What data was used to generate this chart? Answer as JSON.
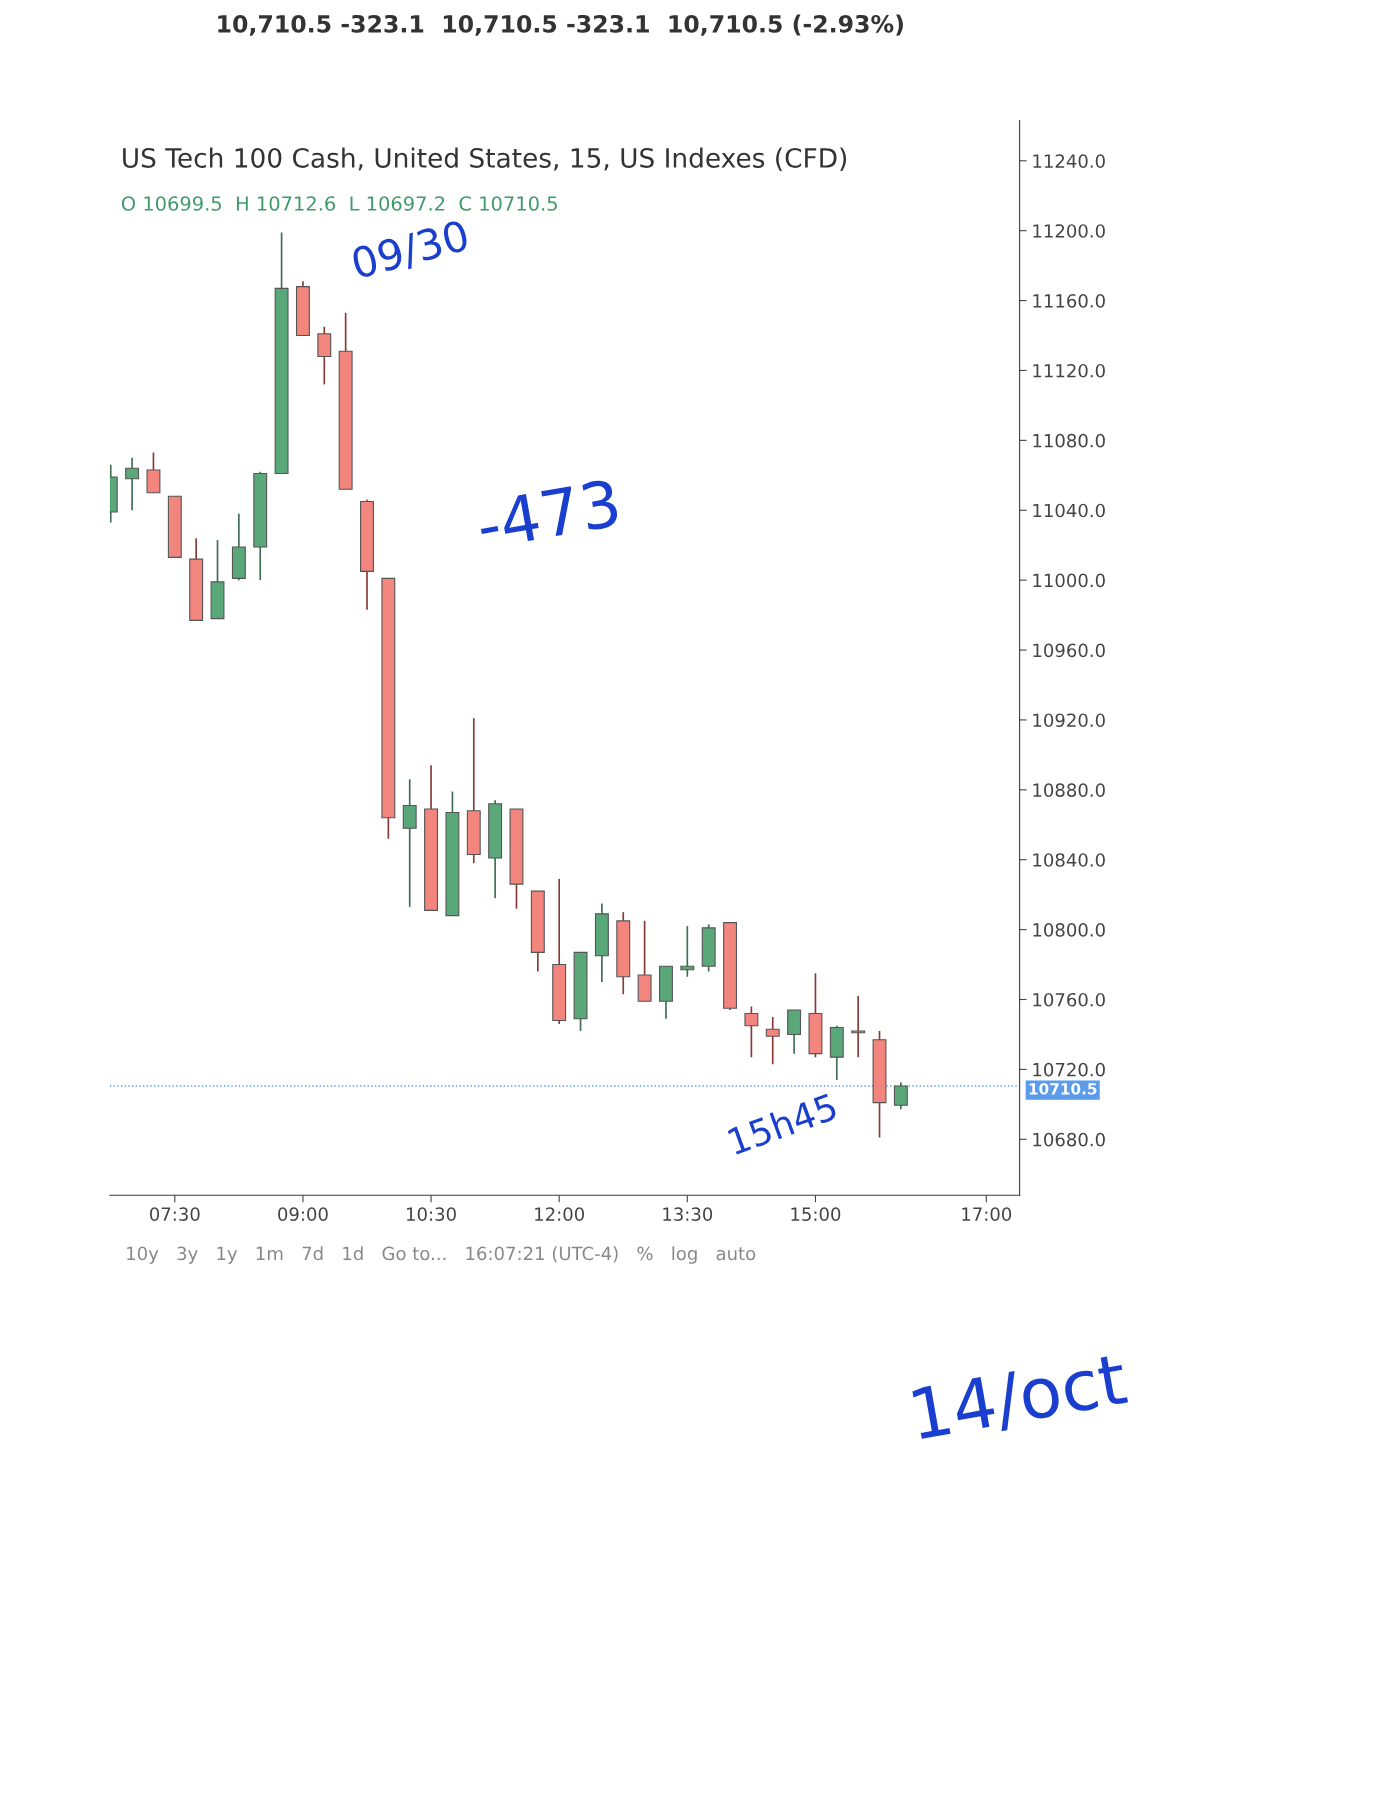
{
  "chart_data": {
    "type": "candlestick",
    "title": "US Tech 100 Cash, United States, 15, US Indexes (CFD)",
    "subtitle": "O 10699.5  H 10712.6  L 10697.2  C 10710.5",
    "x": [
      6.75,
      7.0,
      7.25,
      7.5,
      7.75,
      8.0,
      8.25,
      8.5,
      8.75,
      9.0,
      9.25,
      9.5,
      9.75,
      10.0,
      10.25,
      10.5,
      10.75,
      11.0,
      11.25,
      11.5,
      11.75,
      12.0,
      12.25,
      12.5,
      12.75,
      13.0,
      13.25,
      13.5,
      13.75,
      14.0,
      14.25,
      14.5,
      14.75,
      15.0,
      15.25,
      15.5,
      15.75,
      16.0
    ],
    "ohlc": [
      [
        11039,
        11066,
        11033,
        11059
      ],
      [
        11058,
        11070,
        11040,
        11064
      ],
      [
        11063,
        11073,
        11050,
        11050
      ],
      [
        11048,
        11048,
        11013,
        11013
      ],
      [
        11012,
        11024,
        10977,
        10977
      ],
      [
        10978,
        11023,
        10978,
        10999
      ],
      [
        11001,
        11038,
        11000,
        11019
      ],
      [
        11019,
        11062,
        11000,
        11061
      ],
      [
        11061,
        11199,
        11061,
        11167
      ],
      [
        11168,
        11171,
        11140,
        11140
      ],
      [
        11141,
        11145,
        11112,
        11128
      ],
      [
        11131,
        11153,
        11052,
        11052
      ],
      [
        11045,
        11046,
        10983,
        11005
      ],
      [
        11001,
        11001,
        10852,
        10864
      ],
      [
        10858,
        10886,
        10813,
        10871
      ],
      [
        10869,
        10894,
        10811,
        10811
      ],
      [
        10808,
        10879,
        10808,
        10867
      ],
      [
        10868,
        10921,
        10838,
        10843
      ],
      [
        10841,
        10874,
        10818,
        10872
      ],
      [
        10869,
        10869,
        10812,
        10826
      ],
      [
        10822,
        10822,
        10776,
        10787
      ],
      [
        10780,
        10829,
        10746,
        10748
      ],
      [
        10749,
        10787,
        10742,
        10787
      ],
      [
        10785,
        10815,
        10770,
        10809
      ],
      [
        10805,
        10810,
        10763,
        10773
      ],
      [
        10774,
        10805,
        10759,
        10759
      ],
      [
        10759,
        10779,
        10749,
        10779
      ],
      [
        10777,
        10802,
        10773,
        10779
      ],
      [
        10779,
        10803,
        10776,
        10801
      ],
      [
        10804,
        10804,
        10754,
        10755
      ],
      [
        10752,
        10756,
        10727,
        10745
      ],
      [
        10743,
        10750,
        10723,
        10739
      ],
      [
        10740,
        10754,
        10729,
        10754
      ],
      [
        10752,
        10775,
        10727,
        10729
      ],
      [
        10727,
        10745,
        10714,
        10744
      ],
      [
        10742,
        10762,
        10727,
        10741
      ],
      [
        10737,
        10742,
        10681,
        10701
      ],
      [
        10699.5,
        10712.6,
        10697.2,
        10710.5
      ]
    ],
    "colors": [
      "#5aa87a",
      "#5aa87a",
      "#f2857e",
      "#f2857e",
      "#f2857e",
      "#5aa87a",
      "#5aa87a",
      "#5aa87a",
      "#5aa87a",
      "#f2857e",
      "#f2857e",
      "#f2857e",
      "#f2857e",
      "#f2857e",
      "#5aa87a",
      "#f2857e",
      "#5aa87a",
      "#f2857e",
      "#5aa87a",
      "#f2857e",
      "#f2857e",
      "#f2857e",
      "#5aa87a",
      "#5aa87a",
      "#f2857e",
      "#f2857e",
      "#5aa87a",
      "#5aa87a",
      "#5aa87a",
      "#f2857e",
      "#f2857e",
      "#f2857e",
      "#5aa87a",
      "#f2857e",
      "#5aa87a",
      "#f2857e",
      "#f2857e",
      "#5aa87a"
    ],
    "xlim": [
      6.74,
      17.39
    ],
    "xticks": [
      {
        "value": 7.5,
        "label": "07:30"
      },
      {
        "value": 9,
        "label": "09:00"
      },
      {
        "value": 10.5,
        "label": "10:30"
      },
      {
        "value": 12,
        "label": "12:00"
      },
      {
        "value": 13.5,
        "label": "13:30"
      },
      {
        "value": 15,
        "label": "15:00"
      },
      {
        "value": 17,
        "label": "17:00"
      }
    ],
    "ylim": [
      10648,
      11263
    ],
    "yticks": [
      {
        "value": 10680,
        "label": "10680.0"
      },
      {
        "value": 10720,
        "label": "10720.0"
      },
      {
        "value": 10760,
        "label": "10760.0"
      },
      {
        "value": 10800,
        "label": "10800.0"
      },
      {
        "value": 10840,
        "label": "10840.0"
      },
      {
        "value": 10880,
        "label": "10880.0"
      },
      {
        "value": 10920,
        "label": "10920.0"
      },
      {
        "value": 10960,
        "label": "10960.0"
      },
      {
        "value": 11000,
        "label": "11000.0"
      },
      {
        "value": 11040,
        "label": "11040.0"
      },
      {
        "value": 11080,
        "label": "11080.0"
      },
      {
        "value": 11120,
        "label": "11120.0"
      },
      {
        "value": 11160,
        "label": "11160.0"
      },
      {
        "value": 11200,
        "label": "11200.0"
      },
      {
        "value": 11240,
        "label": "11240.0"
      }
    ],
    "ref_lines": [
      {
        "axis": "y",
        "value": 10710.5,
        "label": "10710.5",
        "color": "#5b9bea",
        "line_style": "dotted"
      }
    ],
    "annotations": [
      "10,710.5 -323.1  10,710.5 -323.1  10,710.5 (-2.93%)",
      "09/30",
      "-473",
      "15h45",
      "14/oct",
      "10y   3y   1y   1m   7d   1d   Go to...   16:07:21 (UTC-4)   %   log   auto"
    ]
  }
}
